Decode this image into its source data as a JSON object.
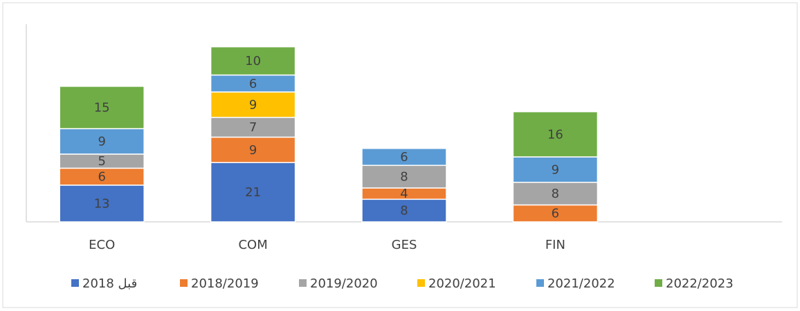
{
  "chart_data": {
    "type": "bar",
    "stacked": true,
    "categories": [
      "ECO",
      "COM",
      "GES",
      "FIN",
      null
    ],
    "series": [
      {
        "name": "قبل 2018",
        "color": "#4472c4",
        "values": [
          13,
          21,
          8,
          null,
          null
        ]
      },
      {
        "name": "2018/2019",
        "color": "#ed7d31",
        "values": [
          6,
          9,
          4,
          6,
          null
        ]
      },
      {
        "name": "2019/2020",
        "color": "#a5a5a5",
        "values": [
          5,
          7,
          8,
          8,
          null
        ]
      },
      {
        "name": "2020/2021",
        "color": "#ffc000",
        "values": [
          null,
          9,
          null,
          null,
          null
        ]
      },
      {
        "name": "2021/2022",
        "color": "#5b9bd5",
        "values": [
          9,
          6,
          6,
          9,
          null
        ]
      },
      {
        "name": "2022/2023",
        "color": "#70ad47",
        "values": [
          15,
          10,
          null,
          16,
          null
        ]
      }
    ],
    "ylim": [
      0,
      70
    ],
    "legend": "bottom"
  }
}
